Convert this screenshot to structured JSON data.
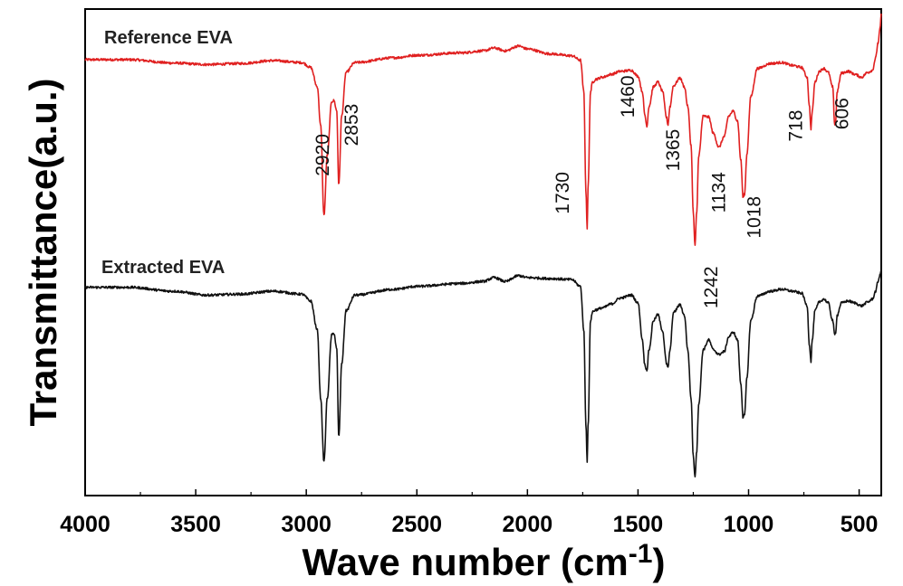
{
  "chart_data": {
    "type": "line",
    "title": "",
    "xlabel": "Wave number (cm",
    "xlabel_superscript": "-1",
    "xlabel_suffix": ")",
    "ylabel": "Transmittance(a.u.)",
    "xlim": [
      4000,
      400
    ],
    "x_reversed": true,
    "ylim": [
      0,
      1
    ],
    "y_ticks_shown": false,
    "x_ticks": [
      4000,
      3500,
      3000,
      2500,
      2000,
      1500,
      1000,
      500
    ],
    "x_tick_labels": [
      "4000",
      "3500",
      "3000",
      "2500",
      "2000",
      "1500",
      "1000",
      "500"
    ],
    "grid": false,
    "series": [
      {
        "name": "Reference EVA",
        "color": "#e02020",
        "baseline": 0.896,
        "noise": 0.0025,
        "anchors": [
          [
            4000,
            0.896
          ],
          [
            3800,
            0.896
          ],
          [
            3600,
            0.889
          ],
          [
            3450,
            0.886
          ],
          [
            3300,
            0.888
          ],
          [
            3150,
            0.894
          ],
          [
            3020,
            0.89
          ],
          [
            2980,
            0.88
          ],
          [
            2950,
            0.84
          ],
          [
            2935,
            0.76
          ],
          [
            2920,
            0.576
          ],
          [
            2905,
            0.7
          ],
          [
            2885,
            0.81
          ],
          [
            2875,
            0.812
          ],
          [
            2862,
            0.79
          ],
          [
            2853,
            0.638
          ],
          [
            2840,
            0.78
          ],
          [
            2820,
            0.87
          ],
          [
            2780,
            0.89
          ],
          [
            2600,
            0.9
          ],
          [
            2500,
            0.905
          ],
          [
            2300,
            0.91
          ],
          [
            2200,
            0.914
          ],
          [
            2150,
            0.92
          ],
          [
            2100,
            0.914
          ],
          [
            2040,
            0.924
          ],
          [
            2000,
            0.918
          ],
          [
            1900,
            0.908
          ],
          [
            1800,
            0.904
          ],
          [
            1760,
            0.895
          ],
          [
            1745,
            0.83
          ],
          [
            1735,
            0.62
          ],
          [
            1730,
            0.548
          ],
          [
            1725,
            0.64
          ],
          [
            1715,
            0.83
          ],
          [
            1705,
            0.85
          ],
          [
            1690,
            0.856
          ],
          [
            1660,
            0.86
          ],
          [
            1620,
            0.866
          ],
          [
            1580,
            0.872
          ],
          [
            1530,
            0.874
          ],
          [
            1500,
            0.862
          ],
          [
            1480,
            0.83
          ],
          [
            1470,
            0.784
          ],
          [
            1460,
            0.76
          ],
          [
            1450,
            0.8
          ],
          [
            1430,
            0.84
          ],
          [
            1410,
            0.85
          ],
          [
            1390,
            0.832
          ],
          [
            1370,
            0.776
          ],
          [
            1365,
            0.762
          ],
          [
            1355,
            0.8
          ],
          [
            1340,
            0.842
          ],
          [
            1310,
            0.858
          ],
          [
            1290,
            0.84
          ],
          [
            1275,
            0.8
          ],
          [
            1260,
            0.72
          ],
          [
            1250,
            0.58
          ],
          [
            1242,
            0.514
          ],
          [
            1235,
            0.58
          ],
          [
            1225,
            0.7
          ],
          [
            1205,
            0.78
          ],
          [
            1180,
            0.778
          ],
          [
            1160,
            0.745
          ],
          [
            1134,
            0.716
          ],
          [
            1110,
            0.738
          ],
          [
            1090,
            0.78
          ],
          [
            1070,
            0.79
          ],
          [
            1050,
            0.77
          ],
          [
            1035,
            0.69
          ],
          [
            1025,
            0.612
          ],
          [
            1018,
            0.62
          ],
          [
            1008,
            0.7
          ],
          [
            990,
            0.82
          ],
          [
            960,
            0.878
          ],
          [
            900,
            0.888
          ],
          [
            850,
            0.89
          ],
          [
            800,
            0.884
          ],
          [
            760,
            0.88
          ],
          [
            735,
            0.86
          ],
          [
            725,
            0.8
          ],
          [
            718,
            0.754
          ],
          [
            712,
            0.79
          ],
          [
            700,
            0.85
          ],
          [
            680,
            0.872
          ],
          [
            660,
            0.878
          ],
          [
            640,
            0.87
          ],
          [
            620,
            0.84
          ],
          [
            610,
            0.762
          ],
          [
            606,
            0.768
          ],
          [
            600,
            0.83
          ],
          [
            580,
            0.868
          ],
          [
            550,
            0.872
          ],
          [
            520,
            0.866
          ],
          [
            490,
            0.86
          ],
          [
            460,
            0.87
          ],
          [
            440,
            0.874
          ],
          [
            425,
            0.9
          ],
          [
            415,
            0.93
          ],
          [
            405,
            0.96
          ],
          [
            400,
            0.99
          ]
        ]
      },
      {
        "name": "Extracted EVA",
        "color": "#111111",
        "baseline": 0.428,
        "noise": 0.0025,
        "anchors": [
          [
            4000,
            0.428
          ],
          [
            3800,
            0.428
          ],
          [
            3600,
            0.42
          ],
          [
            3450,
            0.412
          ],
          [
            3300,
            0.414
          ],
          [
            3150,
            0.42
          ],
          [
            3020,
            0.414
          ],
          [
            2980,
            0.4
          ],
          [
            2950,
            0.34
          ],
          [
            2935,
            0.2
          ],
          [
            2920,
            0.07
          ],
          [
            2905,
            0.2
          ],
          [
            2885,
            0.33
          ],
          [
            2875,
            0.334
          ],
          [
            2862,
            0.3
          ],
          [
            2853,
            0.12
          ],
          [
            2840,
            0.27
          ],
          [
            2820,
            0.38
          ],
          [
            2780,
            0.412
          ],
          [
            2600,
            0.424
          ],
          [
            2500,
            0.43
          ],
          [
            2300,
            0.436
          ],
          [
            2200,
            0.44
          ],
          [
            2150,
            0.448
          ],
          [
            2100,
            0.44
          ],
          [
            2040,
            0.452
          ],
          [
            2000,
            0.448
          ],
          [
            1900,
            0.446
          ],
          [
            1800,
            0.444
          ],
          [
            1760,
            0.43
          ],
          [
            1745,
            0.34
          ],
          [
            1735,
            0.14
          ],
          [
            1730,
            0.07
          ],
          [
            1725,
            0.15
          ],
          [
            1715,
            0.36
          ],
          [
            1705,
            0.378
          ],
          [
            1690,
            0.382
          ],
          [
            1660,
            0.386
          ],
          [
            1620,
            0.394
          ],
          [
            1580,
            0.406
          ],
          [
            1530,
            0.412
          ],
          [
            1500,
            0.396
          ],
          [
            1480,
            0.32
          ],
          [
            1470,
            0.27
          ],
          [
            1460,
            0.258
          ],
          [
            1450,
            0.3
          ],
          [
            1430,
            0.36
          ],
          [
            1410,
            0.372
          ],
          [
            1390,
            0.34
          ],
          [
            1370,
            0.27
          ],
          [
            1365,
            0.262
          ],
          [
            1355,
            0.3
          ],
          [
            1340,
            0.376
          ],
          [
            1310,
            0.392
          ],
          [
            1290,
            0.37
          ],
          [
            1275,
            0.3
          ],
          [
            1260,
            0.2
          ],
          [
            1250,
            0.08
          ],
          [
            1242,
            0.04
          ],
          [
            1235,
            0.09
          ],
          [
            1225,
            0.19
          ],
          [
            1205,
            0.3
          ],
          [
            1180,
            0.32
          ],
          [
            1160,
            0.3
          ],
          [
            1134,
            0.29
          ],
          [
            1110,
            0.296
          ],
          [
            1090,
            0.326
          ],
          [
            1070,
            0.336
          ],
          [
            1050,
            0.32
          ],
          [
            1035,
            0.23
          ],
          [
            1025,
            0.16
          ],
          [
            1018,
            0.166
          ],
          [
            1008,
            0.24
          ],
          [
            990,
            0.36
          ],
          [
            960,
            0.41
          ],
          [
            900,
            0.42
          ],
          [
            850,
            0.424
          ],
          [
            800,
            0.42
          ],
          [
            760,
            0.416
          ],
          [
            735,
            0.39
          ],
          [
            725,
            0.31
          ],
          [
            718,
            0.276
          ],
          [
            712,
            0.32
          ],
          [
            700,
            0.38
          ],
          [
            680,
            0.398
          ],
          [
            660,
            0.404
          ],
          [
            640,
            0.396
          ],
          [
            620,
            0.36
          ],
          [
            610,
            0.33
          ],
          [
            606,
            0.336
          ],
          [
            600,
            0.37
          ],
          [
            580,
            0.396
          ],
          [
            550,
            0.4
          ],
          [
            520,
            0.396
          ],
          [
            490,
            0.39
          ],
          [
            460,
            0.398
          ],
          [
            440,
            0.404
          ],
          [
            425,
            0.42
          ],
          [
            415,
            0.44
          ],
          [
            405,
            0.455
          ],
          [
            400,
            0.46
          ]
        ]
      }
    ],
    "annotations": [
      {
        "text": "2920",
        "x": 2920,
        "y": 0.7,
        "rotation": -90
      },
      {
        "text": "2853",
        "x": 2790,
        "y": 0.762,
        "rotation": -90
      },
      {
        "text": "1730",
        "x": 1835,
        "y": 0.622,
        "rotation": -90
      },
      {
        "text": "1460",
        "x": 1540,
        "y": 0.82,
        "rotation": -90
      },
      {
        "text": "1365",
        "x": 1335,
        "y": 0.71,
        "rotation": -90
      },
      {
        "text": "1242",
        "x": 1165,
        "y": 0.428,
        "rotation": -90
      },
      {
        "text": "1134",
        "x": 1130,
        "y": 0.623,
        "rotation": -90
      },
      {
        "text": "1018",
        "x": 970,
        "y": 0.572,
        "rotation": -90
      },
      {
        "text": "718",
        "x": 782,
        "y": 0.76,
        "rotation": -90
      },
      {
        "text": "606",
        "x": 572,
        "y": 0.785,
        "rotation": -90
      }
    ]
  }
}
